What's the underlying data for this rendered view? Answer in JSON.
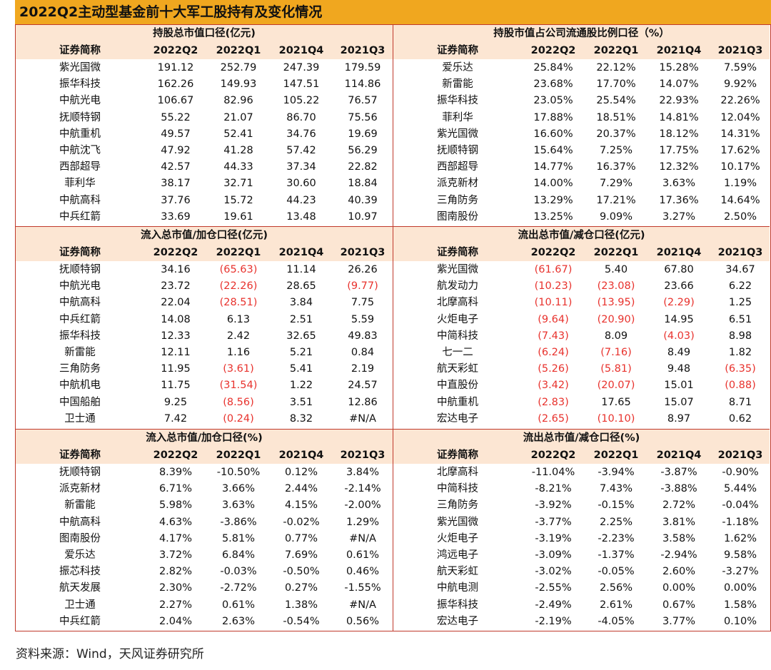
{
  "title": "2022Q2主动型基金前十大军工股持有及变化情况",
  "source": "资料来源：Wind，天风证券研究所",
  "colors": {
    "header_bar": "#f0a71f",
    "panel_header_bg": "#fce6d3",
    "border": "#c0392b",
    "negative_text": "#e8322d"
  },
  "panels": [
    {
      "title": "持股总市值口径(亿元)",
      "headers": [
        "证券简称",
        "2022Q2",
        "2022Q1",
        "2021Q4",
        "2021Q3"
      ],
      "rows": [
        [
          "紫光国微",
          "191.12",
          "252.79",
          "247.39",
          "179.59"
        ],
        [
          "振华科技",
          "162.26",
          "149.93",
          "147.51",
          "114.86"
        ],
        [
          "中航光电",
          "106.67",
          "82.96",
          "105.22",
          "76.57"
        ],
        [
          "抚顺特钢",
          "55.22",
          "21.07",
          "86.70",
          "75.56"
        ],
        [
          "中航重机",
          "49.57",
          "52.41",
          "34.76",
          "19.69"
        ],
        [
          "中航沈飞",
          "47.92",
          "41.28",
          "57.42",
          "56.29"
        ],
        [
          "西部超导",
          "42.57",
          "44.33",
          "37.34",
          "22.82"
        ],
        [
          "菲利华",
          "38.17",
          "32.71",
          "30.60",
          "18.84"
        ],
        [
          "中航高科",
          "37.76",
          "15.72",
          "44.23",
          "40.39"
        ],
        [
          "中兵红箭",
          "33.69",
          "19.61",
          "13.48",
          "10.97"
        ]
      ]
    },
    {
      "title": "持股市值占公司流通股比例口径（%）",
      "headers": [
        "证券简称",
        "2022Q2",
        "2022Q1",
        "2021Q4",
        "2021Q3"
      ],
      "rows": [
        [
          "爱乐达",
          "25.84%",
          "22.12%",
          "15.28%",
          "7.59%"
        ],
        [
          "新雷能",
          "23.68%",
          "17.70%",
          "14.07%",
          "9.92%"
        ],
        [
          "振华科技",
          "23.05%",
          "25.54%",
          "22.93%",
          "22.26%"
        ],
        [
          "菲利华",
          "17.88%",
          "18.51%",
          "14.81%",
          "12.04%"
        ],
        [
          "紫光国微",
          "16.60%",
          "20.37%",
          "18.12%",
          "14.31%"
        ],
        [
          "抚顺特钢",
          "15.64%",
          "7.25%",
          "17.75%",
          "17.62%"
        ],
        [
          "西部超导",
          "14.77%",
          "16.37%",
          "12.32%",
          "10.17%"
        ],
        [
          "派克新材",
          "14.00%",
          "7.29%",
          "3.63%",
          "1.19%"
        ],
        [
          "三角防务",
          "13.29%",
          "17.21%",
          "17.36%",
          "14.64%"
        ],
        [
          "图南股份",
          "13.25%",
          "9.09%",
          "3.27%",
          "2.50%"
        ]
      ]
    },
    {
      "title": "流入总市值/加仓口径(亿元)",
      "headers": [
        "证券简称",
        "2022Q2",
        "2022Q1",
        "2021Q4",
        "2021Q3"
      ],
      "rows": [
        [
          "抚顺特钢",
          "34.16",
          "(65.63)",
          "11.14",
          "26.26"
        ],
        [
          "中航光电",
          "23.72",
          "(22.26)",
          "28.65",
          "(9.77)"
        ],
        [
          "中航高科",
          "22.04",
          "(28.51)",
          "3.84",
          "7.75"
        ],
        [
          "中兵红箭",
          "14.08",
          "6.13",
          "2.51",
          "5.59"
        ],
        [
          "振华科技",
          "12.33",
          "2.42",
          "32.65",
          "49.83"
        ],
        [
          "新雷能",
          "12.11",
          "1.16",
          "5.21",
          "0.84"
        ],
        [
          "三角防务",
          "11.95",
          "(3.61)",
          "5.41",
          "2.19"
        ],
        [
          "中航机电",
          "11.75",
          "(31.54)",
          "1.22",
          "24.57"
        ],
        [
          "中国船舶",
          "9.25",
          "(8.56)",
          "3.51",
          "12.86"
        ],
        [
          "卫士通",
          "7.42",
          "(0.24)",
          "8.32",
          "#N/A"
        ]
      ]
    },
    {
      "title": "流出总市值/减仓口径(亿元)",
      "headers": [
        "证券简称",
        "2022Q2",
        "2022Q1",
        "2021Q4",
        "2021Q3"
      ],
      "rows": [
        [
          "紫光国微",
          "(61.67)",
          "5.40",
          "67.80",
          "34.67"
        ],
        [
          "航发动力",
          "(10.23)",
          "(23.08)",
          "23.66",
          "6.22"
        ],
        [
          "北摩高科",
          "(10.11)",
          "(13.95)",
          "(2.29)",
          "1.25"
        ],
        [
          "火炬电子",
          "(9.64)",
          "(20.90)",
          "14.95",
          "6.51"
        ],
        [
          "中简科技",
          "(7.43)",
          "8.09",
          "(4.03)",
          "8.98"
        ],
        [
          "七一二",
          "(6.24)",
          "(7.16)",
          "8.49",
          "1.82"
        ],
        [
          "航天彩虹",
          "(5.26)",
          "(5.81)",
          "9.48",
          "(6.35)"
        ],
        [
          "中直股份",
          "(3.42)",
          "(20.07)",
          "15.01",
          "(0.88)"
        ],
        [
          "中航重机",
          "(2.83)",
          "17.65",
          "15.07",
          "8.71"
        ],
        [
          "宏达电子",
          "(2.65)",
          "(10.10)",
          "8.97",
          "0.62"
        ]
      ]
    },
    {
      "title": "流入总市值/加仓口径(%)",
      "headers": [
        "证券简称",
        "2022Q2",
        "2022Q1",
        "2021Q4",
        "2021Q3"
      ],
      "rows": [
        [
          "抚顺特钢",
          "8.39%",
          "-10.50%",
          "0.12%",
          "3.84%"
        ],
        [
          "派克新材",
          "6.71%",
          "3.66%",
          "2.44%",
          "-2.14%"
        ],
        [
          "新雷能",
          "5.98%",
          "3.63%",
          "4.15%",
          "-2.00%"
        ],
        [
          "中航高科",
          "4.63%",
          "-3.86%",
          "-0.02%",
          "1.29%"
        ],
        [
          "图南股份",
          "4.17%",
          "5.81%",
          "0.77%",
          "#N/A"
        ],
        [
          "爱乐达",
          "3.72%",
          "6.84%",
          "7.69%",
          "0.61%"
        ],
        [
          "振芯科技",
          "2.82%",
          "-0.03%",
          "-0.50%",
          "0.46%"
        ],
        [
          "航天发展",
          "2.30%",
          "-2.72%",
          "0.27%",
          "-1.55%"
        ],
        [
          "卫士通",
          "2.27%",
          "0.61%",
          "1.38%",
          "#N/A"
        ],
        [
          "中兵红箭",
          "2.04%",
          "2.63%",
          "-0.54%",
          "0.56%"
        ]
      ]
    },
    {
      "title": "流出总市值/减仓口径(%)",
      "headers": [
        "证券简称",
        "2022Q2",
        "2022Q1",
        "2021Q4",
        "2021Q3"
      ],
      "rows": [
        [
          "北摩高科",
          "-11.04%",
          "-3.94%",
          "-3.87%",
          "-0.90%"
        ],
        [
          "中简科技",
          "-8.21%",
          "7.43%",
          "-3.88%",
          "5.44%"
        ],
        [
          "三角防务",
          "-3.92%",
          "-0.15%",
          "2.72%",
          "-0.04%"
        ],
        [
          "紫光国微",
          "-3.77%",
          "2.25%",
          "3.81%",
          "-1.18%"
        ],
        [
          "火炬电子",
          "-3.19%",
          "-2.23%",
          "3.58%",
          "1.62%"
        ],
        [
          "鸿远电子",
          "-3.09%",
          "-1.37%",
          "-2.94%",
          "9.58%"
        ],
        [
          "航天彩虹",
          "-3.02%",
          "-0.05%",
          "2.60%",
          "-3.27%"
        ],
        [
          "中航电测",
          "-2.55%",
          "2.56%",
          "0.00%",
          "0.00%"
        ],
        [
          "振华科技",
          "-2.49%",
          "2.61%",
          "0.67%",
          "1.58%"
        ],
        [
          "宏达电子",
          "-2.19%",
          "-4.05%",
          "3.77%",
          "0.10%"
        ]
      ]
    }
  ]
}
